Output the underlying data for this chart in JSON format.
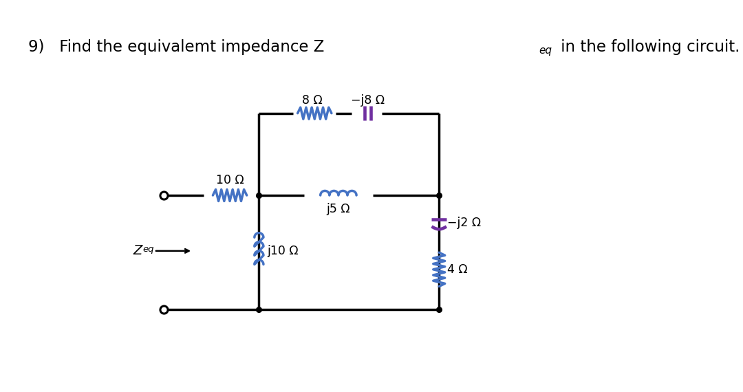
{
  "bg_color": "#ffffff",
  "line_color": "#000000",
  "resistor_color": "#4472c4",
  "inductor_color": "#4472c4",
  "capacitor_color": "#7030a0",
  "lw_main": 2.5,
  "title": "9)   Find the equivalemt impedance Z",
  "title_sub": "eq",
  "title_end": " in the following circuit.",
  "label_10": "10 Ω",
  "label_8": "8 Ω",
  "label_j8": "−j8 Ω",
  "label_j5": "j5 Ω",
  "label_j10": "j10 Ω",
  "label_j2": "−j2 Ω",
  "label_4": "4 Ω",
  "label_zeq": "Z",
  "label_zeq_sub": "eq"
}
